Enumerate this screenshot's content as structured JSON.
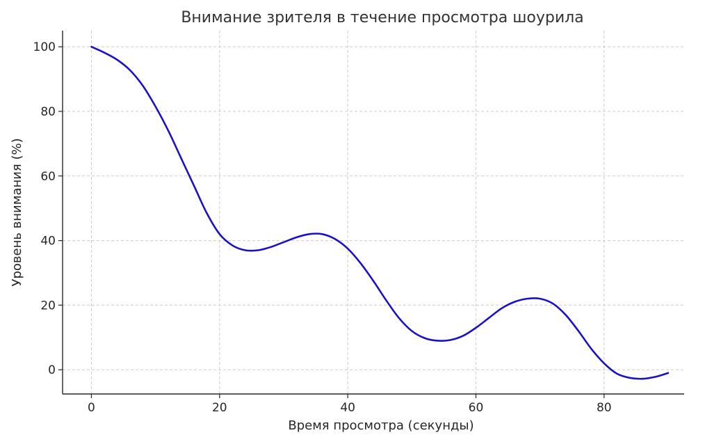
{
  "chart_data": {
    "type": "line",
    "title": "Внимание зрителя в течение просмотра шоурила",
    "xlabel": "Время просмотра (секунды)",
    "ylabel": "Уровень внимания (%)",
    "xlim": [
      -4.5,
      92.5
    ],
    "ylim": [
      -7.5,
      105
    ],
    "xticks": [
      0,
      20,
      40,
      60,
      80
    ],
    "yticks": [
      0,
      20,
      40,
      60,
      80,
      100
    ],
    "grid": true,
    "series": [
      {
        "color": "#1a10c8",
        "x": [
          0,
          2,
          4,
          6,
          8,
          10,
          12,
          14,
          16,
          18,
          20,
          22,
          24,
          26,
          28,
          30,
          32,
          34,
          36,
          38,
          40,
          42,
          44,
          46,
          48,
          50,
          52,
          54,
          56,
          58,
          60,
          62,
          64,
          66,
          68,
          70,
          72,
          74,
          76,
          78,
          80,
          82,
          84,
          86,
          88,
          90
        ],
        "y": [
          100,
          98.2,
          96,
          92.8,
          88,
          81.5,
          74,
          65.5,
          57,
          48.5,
          42,
          38.5,
          37,
          37,
          38,
          39.5,
          41,
          42,
          42,
          40.5,
          37.5,
          33,
          27.5,
          21.5,
          16,
          12,
          9.8,
          9,
          9.2,
          10.5,
          13,
          16,
          19,
          21,
          22,
          22,
          20.5,
          17,
          12,
          6.5,
          2,
          -1.2,
          -2.5,
          -2.8,
          -2.2,
          -1
        ]
      }
    ]
  }
}
